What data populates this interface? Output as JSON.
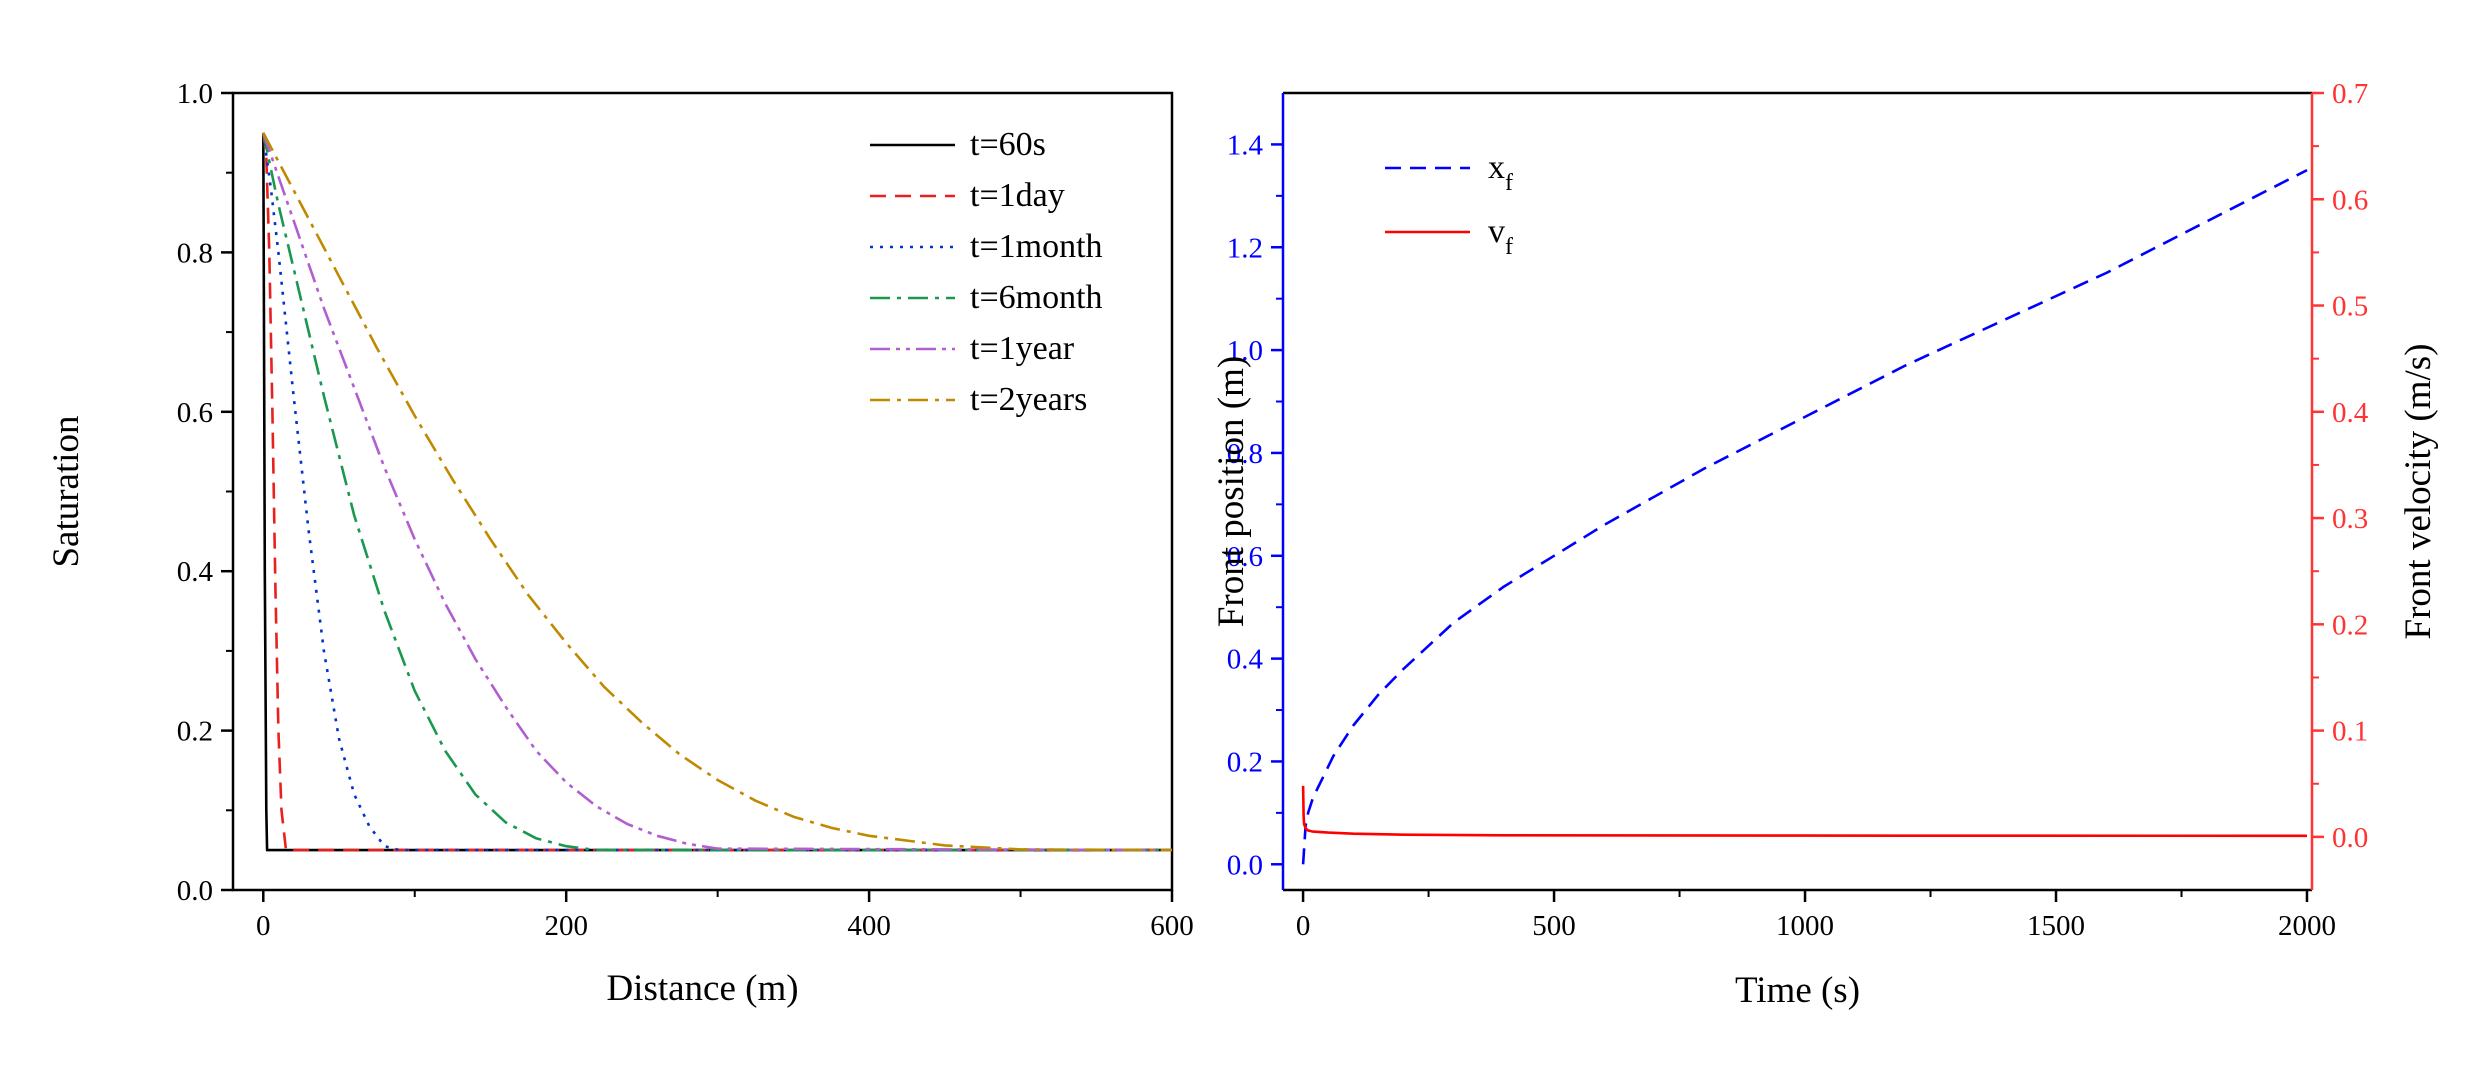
{
  "chart_data": [
    {
      "type": "line",
      "xlabel": "Distance (m)",
      "ylabel": "Saturation",
      "xlim": [
        -20,
        600
      ],
      "ylim": [
        0,
        1.0
      ],
      "xticks": [
        0,
        200,
        400,
        600
      ],
      "yticks": [
        0.0,
        0.2,
        0.4,
        0.6,
        0.8,
        1.0
      ],
      "legend_position": "top-right",
      "grid": false,
      "series": [
        {
          "name": "t=60s",
          "color": "#000000",
          "dash": "solid",
          "x": [
            0,
            0.5,
            1,
            2,
            2.5,
            3,
            5,
            100,
            300,
            600
          ],
          "y": [
            0.95,
            0.7,
            0.4,
            0.1,
            0.05,
            0.05,
            0.05,
            0.05,
            0.05,
            0.05
          ]
        },
        {
          "name": "t=1day",
          "color": "#E8211E",
          "dash": "dashed",
          "x": [
            0,
            2,
            4,
            6,
            8,
            10,
            12,
            15,
            25,
            100,
            600
          ],
          "y": [
            0.95,
            0.92,
            0.8,
            0.6,
            0.38,
            0.2,
            0.1,
            0.05,
            0.05,
            0.05,
            0.05
          ]
        },
        {
          "name": "t=1month",
          "color": "#0033CC",
          "dash": "dotted",
          "x": [
            0,
            5,
            10,
            20,
            30,
            40,
            50,
            60,
            70,
            80,
            90,
            150,
            600
          ],
          "y": [
            0.95,
            0.88,
            0.8,
            0.62,
            0.45,
            0.3,
            0.19,
            0.12,
            0.08,
            0.055,
            0.05,
            0.05,
            0.05
          ]
        },
        {
          "name": "t=6month",
          "color": "#1A9850",
          "dash": "dashdot",
          "x": [
            0,
            10,
            20,
            40,
            60,
            80,
            100,
            120,
            140,
            160,
            180,
            200,
            220,
            300,
            600
          ],
          "y": [
            0.95,
            0.86,
            0.78,
            0.62,
            0.47,
            0.35,
            0.25,
            0.175,
            0.12,
            0.085,
            0.065,
            0.055,
            0.05,
            0.05,
            0.05
          ]
        },
        {
          "name": "t=1year",
          "color": "#B15FD0",
          "dash": "dashdotdot",
          "x": [
            0,
            20,
            40,
            60,
            80,
            100,
            120,
            140,
            160,
            180,
            200,
            220,
            240,
            260,
            280,
            300,
            600
          ],
          "y": [
            0.95,
            0.84,
            0.73,
            0.63,
            0.53,
            0.44,
            0.36,
            0.29,
            0.23,
            0.175,
            0.135,
            0.105,
            0.083,
            0.068,
            0.058,
            0.052,
            0.05
          ]
        },
        {
          "name": "t=2years",
          "color": "#C08A00",
          "dash": "dashdot",
          "x": [
            0,
            25,
            50,
            75,
            100,
            125,
            150,
            175,
            200,
            225,
            250,
            275,
            300,
            325,
            350,
            375,
            400,
            450,
            500,
            600
          ],
          "y": [
            0.95,
            0.86,
            0.77,
            0.68,
            0.595,
            0.515,
            0.44,
            0.37,
            0.31,
            0.255,
            0.21,
            0.17,
            0.138,
            0.112,
            0.092,
            0.078,
            0.068,
            0.056,
            0.051,
            0.05
          ]
        }
      ]
    },
    {
      "type": "line",
      "xlabel": "Time (s)",
      "ylabel": "Front position (m)",
      "ylabel_right": "Front velocity (m/s)",
      "xlim": [
        -40,
        2010
      ],
      "ylim": [
        -0.05,
        1.5
      ],
      "ylim_right": [
        -0.05,
        0.7
      ],
      "xticks": [
        0,
        500,
        1000,
        1500,
        2000
      ],
      "yticks": [
        0.0,
        0.2,
        0.4,
        0.6,
        0.8,
        1.0,
        1.2,
        1.4
      ],
      "yticks_right": [
        0.0,
        0.1,
        0.2,
        0.3,
        0.4,
        0.5,
        0.6,
        0.7
      ],
      "legend_position": "top-left",
      "grid": false,
      "colors": {
        "left_axis": "#0000FF",
        "right_axis": "#FF3333"
      },
      "series": [
        {
          "name": "x",
          "subscript": "f",
          "axis": "left",
          "color": "#0000FF",
          "dash": "dashed",
          "x": [
            0,
            5,
            10,
            20,
            40,
            60,
            80,
            100,
            150,
            200,
            300,
            400,
            500,
            600,
            800,
            1000,
            1200,
            1400,
            1600,
            1800,
            2000
          ],
          "y": [
            0.0,
            0.075,
            0.1,
            0.13,
            0.17,
            0.21,
            0.24,
            0.27,
            0.33,
            0.38,
            0.47,
            0.54,
            0.6,
            0.66,
            0.77,
            0.87,
            0.97,
            1.06,
            1.15,
            1.25,
            1.35
          ]
        },
        {
          "name": "v",
          "subscript": "f",
          "axis": "right",
          "color": "#FF0000",
          "dash": "solid",
          "x": [
            0,
            1,
            2,
            5,
            10,
            20,
            50,
            100,
            200,
            400,
            1000,
            2000
          ],
          "y": [
            0.048,
            0.02,
            0.012,
            0.008,
            0.006,
            0.005,
            0.004,
            0.003,
            0.002,
            0.0015,
            0.0012,
            0.001
          ]
        }
      ]
    }
  ]
}
